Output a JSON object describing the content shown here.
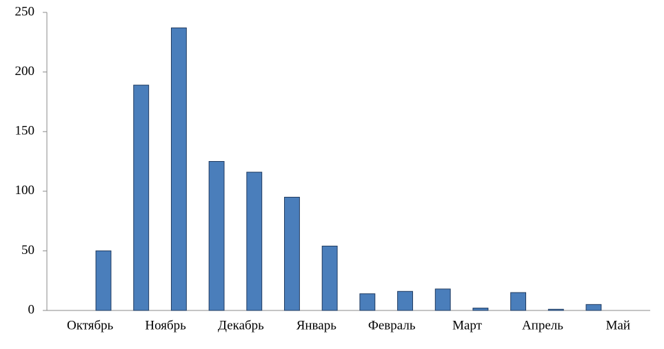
{
  "chart_data": {
    "type": "bar",
    "categories": [
      "Октябрь",
      null,
      "Ноябрь",
      null,
      "Декабрь",
      null,
      "Январь",
      null,
      "Февраль",
      null,
      "Март",
      null,
      "Апрель",
      null,
      "Май",
      null
    ],
    "values": [
      0,
      50,
      189,
      237,
      125,
      116,
      95,
      54,
      14,
      16,
      18,
      2,
      15,
      1,
      5,
      0
    ],
    "color": "#4a7ebb",
    "ylim": [
      0,
      250
    ],
    "yticks": [
      0,
      50,
      100,
      150,
      200,
      250
    ],
    "grid": false
  }
}
